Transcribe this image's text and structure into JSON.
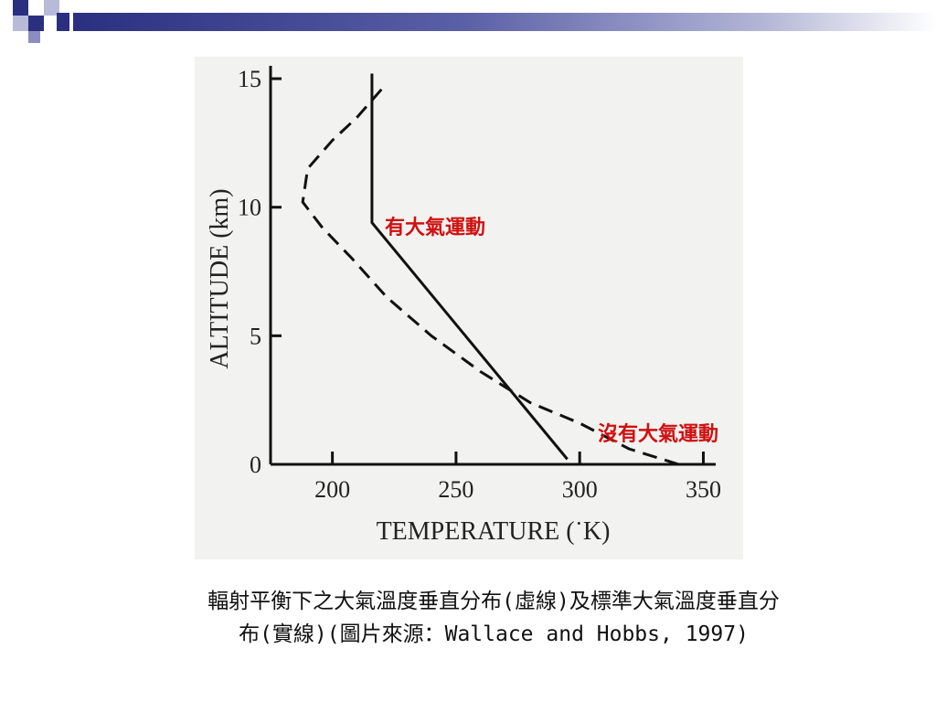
{
  "chart_data": {
    "type": "line",
    "xlabel": "TEMPERATURE (˙K)",
    "ylabel": "ALTITUDE (km)",
    "xlim": [
      175,
      355
    ],
    "ylim": [
      0,
      15.5
    ],
    "x_ticks": [
      "200",
      "250",
      "300",
      "350"
    ],
    "y_ticks": [
      "0",
      "5",
      "10",
      "15"
    ],
    "series": [
      {
        "name": "有大氣運動",
        "style": "solid",
        "points": [
          [
            295,
            0.2
          ],
          [
            216,
            9.4
          ],
          [
            216,
            15.2
          ]
        ]
      },
      {
        "name": "沒有大氣運動",
        "style": "dashed",
        "points": [
          [
            340,
            0
          ],
          [
            320,
            0.6
          ],
          [
            300,
            1.6
          ],
          [
            280,
            2.4
          ],
          [
            260,
            3.6
          ],
          [
            240,
            5
          ],
          [
            222,
            6.5
          ],
          [
            208,
            8
          ],
          [
            196,
            9.2
          ],
          [
            188,
            10.2
          ],
          [
            190,
            11.5
          ],
          [
            200,
            12.6
          ],
          [
            210,
            13.5
          ],
          [
            220,
            14.6
          ]
        ]
      }
    ],
    "annotation_color": "#d01010"
  },
  "caption": {
    "line1": "輻射平衡下之大氣溫度垂直分布(虛線)及標準大氣溫度垂直分",
    "line2": "布(實線)(圖片來源：Wallace and Hobbs, 1997)"
  }
}
